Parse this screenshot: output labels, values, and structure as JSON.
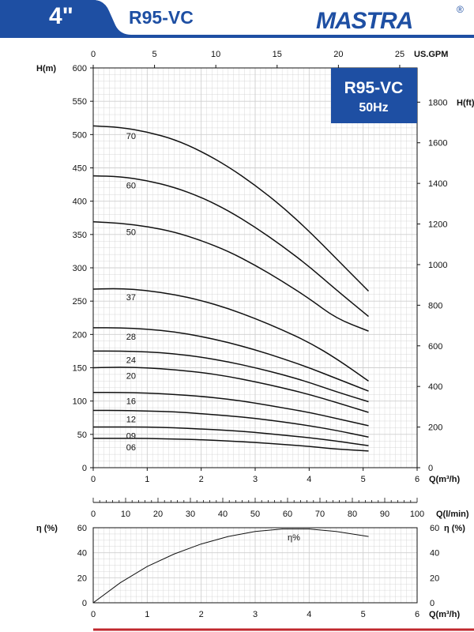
{
  "header": {
    "size_label": "4\"",
    "model": "R95-VC",
    "brand": "MASTRA",
    "reg_mark": "®"
  },
  "colors": {
    "brand_blue": "#1e4fa3",
    "curve": "#111111",
    "grid": "#cfcfcf"
  },
  "title_box": {
    "model": "R95-VC",
    "freq": "50Hz"
  },
  "chart_data": [
    {
      "type": "line",
      "xlabel": "Q(m³/h)",
      "ylabel": "H(m)",
      "y2label": "H(ft)",
      "x2label": "US.GPM",
      "xlim": [
        0,
        6
      ],
      "ylim": [
        0,
        600
      ],
      "x_ticks": [
        0,
        1,
        2,
        3,
        4,
        5,
        6
      ],
      "y_ticks": [
        0,
        50,
        100,
        150,
        200,
        250,
        300,
        350,
        400,
        450,
        500,
        550,
        600
      ],
      "y2_ticks": [
        0,
        200,
        400,
        600,
        800,
        1000,
        1200,
        1400,
        1600,
        1800
      ],
      "x2_ticks": [
        0,
        5,
        10,
        15,
        20,
        25
      ],
      "grid": true,
      "series": [
        {
          "name": "70",
          "x": [
            0,
            0.5,
            1,
            1.5,
            2,
            2.5,
            3,
            3.5,
            4,
            4.5,
            5.1
          ],
          "y": [
            513,
            511,
            504,
            493,
            475,
            452,
            424,
            392,
            355,
            314,
            265
          ]
        },
        {
          "name": "60",
          "x": [
            0,
            0.5,
            1,
            1.5,
            2,
            2.5,
            3,
            3.5,
            4,
            4.5,
            5.1
          ],
          "y": [
            438,
            437,
            431,
            421,
            406,
            386,
            361,
            333,
            302,
            267,
            227
          ]
        },
        {
          "name": "50",
          "x": [
            0,
            0.5,
            1,
            1.5,
            2,
            2.5,
            3,
            3.5,
            4,
            4.5,
            5.1
          ],
          "y": [
            369,
            367,
            362,
            354,
            341,
            325,
            304,
            280,
            254,
            224,
            205
          ]
        },
        {
          "name": "37",
          "x": [
            0,
            0.5,
            1,
            1.5,
            2,
            2.5,
            3,
            3.5,
            4,
            4.5,
            5.1
          ],
          "y": [
            268,
            269,
            266,
            260,
            251,
            239,
            224,
            207,
            188,
            164,
            130
          ]
        },
        {
          "name": "28",
          "x": [
            0,
            0.5,
            1,
            1.5,
            2,
            2.5,
            3,
            3.5,
            4,
            4.5,
            5.1
          ],
          "y": [
            210,
            210,
            208,
            204,
            197,
            188,
            177,
            164,
            150,
            134,
            115
          ]
        },
        {
          "name": "24",
          "x": [
            0,
            0.5,
            1,
            1.5,
            2,
            2.5,
            3,
            3.5,
            4,
            4.5,
            5.1
          ],
          "y": [
            175,
            175,
            174,
            171,
            166,
            159,
            150,
            140,
            128,
            114,
            99
          ]
        },
        {
          "name": "20",
          "x": [
            0,
            0.5,
            1,
            1.5,
            2,
            2.5,
            3,
            3.5,
            4,
            4.5,
            5.1
          ],
          "y": [
            150,
            151,
            150,
            147,
            143,
            137,
            129,
            120,
            110,
            98,
            83
          ]
        },
        {
          "name": "16",
          "x": [
            0,
            0.5,
            1,
            1.5,
            2,
            2.5,
            3,
            3.5,
            4,
            4.5,
            5.1
          ],
          "y": [
            113,
            113,
            112,
            110,
            107,
            103,
            97,
            90,
            83,
            74,
            63
          ]
        },
        {
          "name": "12",
          "x": [
            0,
            0.5,
            1,
            1.5,
            2,
            2.5,
            3,
            3.5,
            4,
            4.5,
            5.1
          ],
          "y": [
            86,
            86,
            85,
            84,
            81,
            78,
            74,
            69,
            63,
            56,
            46
          ]
        },
        {
          "name": "09",
          "x": [
            0,
            0.5,
            1,
            1.5,
            2,
            2.5,
            3,
            3.5,
            4,
            4.5,
            5.1
          ],
          "y": [
            61,
            61,
            61,
            60,
            58,
            56,
            53,
            49,
            45,
            40,
            33
          ]
        },
        {
          "name": "06",
          "x": [
            0,
            0.5,
            1,
            1.5,
            2,
            2.5,
            3,
            3.5,
            4,
            4.5,
            5.1
          ],
          "y": [
            44,
            44,
            44,
            43,
            42,
            40,
            38,
            35,
            32,
            28,
            25
          ]
        }
      ]
    },
    {
      "type": "line",
      "xlabel": "Q(l/min)",
      "xlim": [
        0,
        100
      ],
      "x_ticks": [
        0,
        10,
        20,
        30,
        40,
        50,
        60,
        70,
        80,
        90,
        100
      ]
    },
    {
      "type": "line",
      "xlabel": "Q(m³/h)",
      "ylabel": "η (%)",
      "y2label": "η (%)",
      "xlim": [
        0,
        6
      ],
      "ylim": [
        0,
        60
      ],
      "x_ticks": [
        0,
        1,
        2,
        3,
        4,
        5,
        6
      ],
      "y_ticks": [
        0,
        20,
        40,
        60
      ],
      "grid": true,
      "series": [
        {
          "name": "η%",
          "x": [
            0,
            0.5,
            1,
            1.5,
            2,
            2.5,
            3,
            3.5,
            4,
            4.5,
            5.1
          ],
          "y": [
            0,
            16,
            29,
            39,
            47,
            53,
            57,
            59,
            59,
            57,
            53
          ]
        }
      ]
    }
  ]
}
